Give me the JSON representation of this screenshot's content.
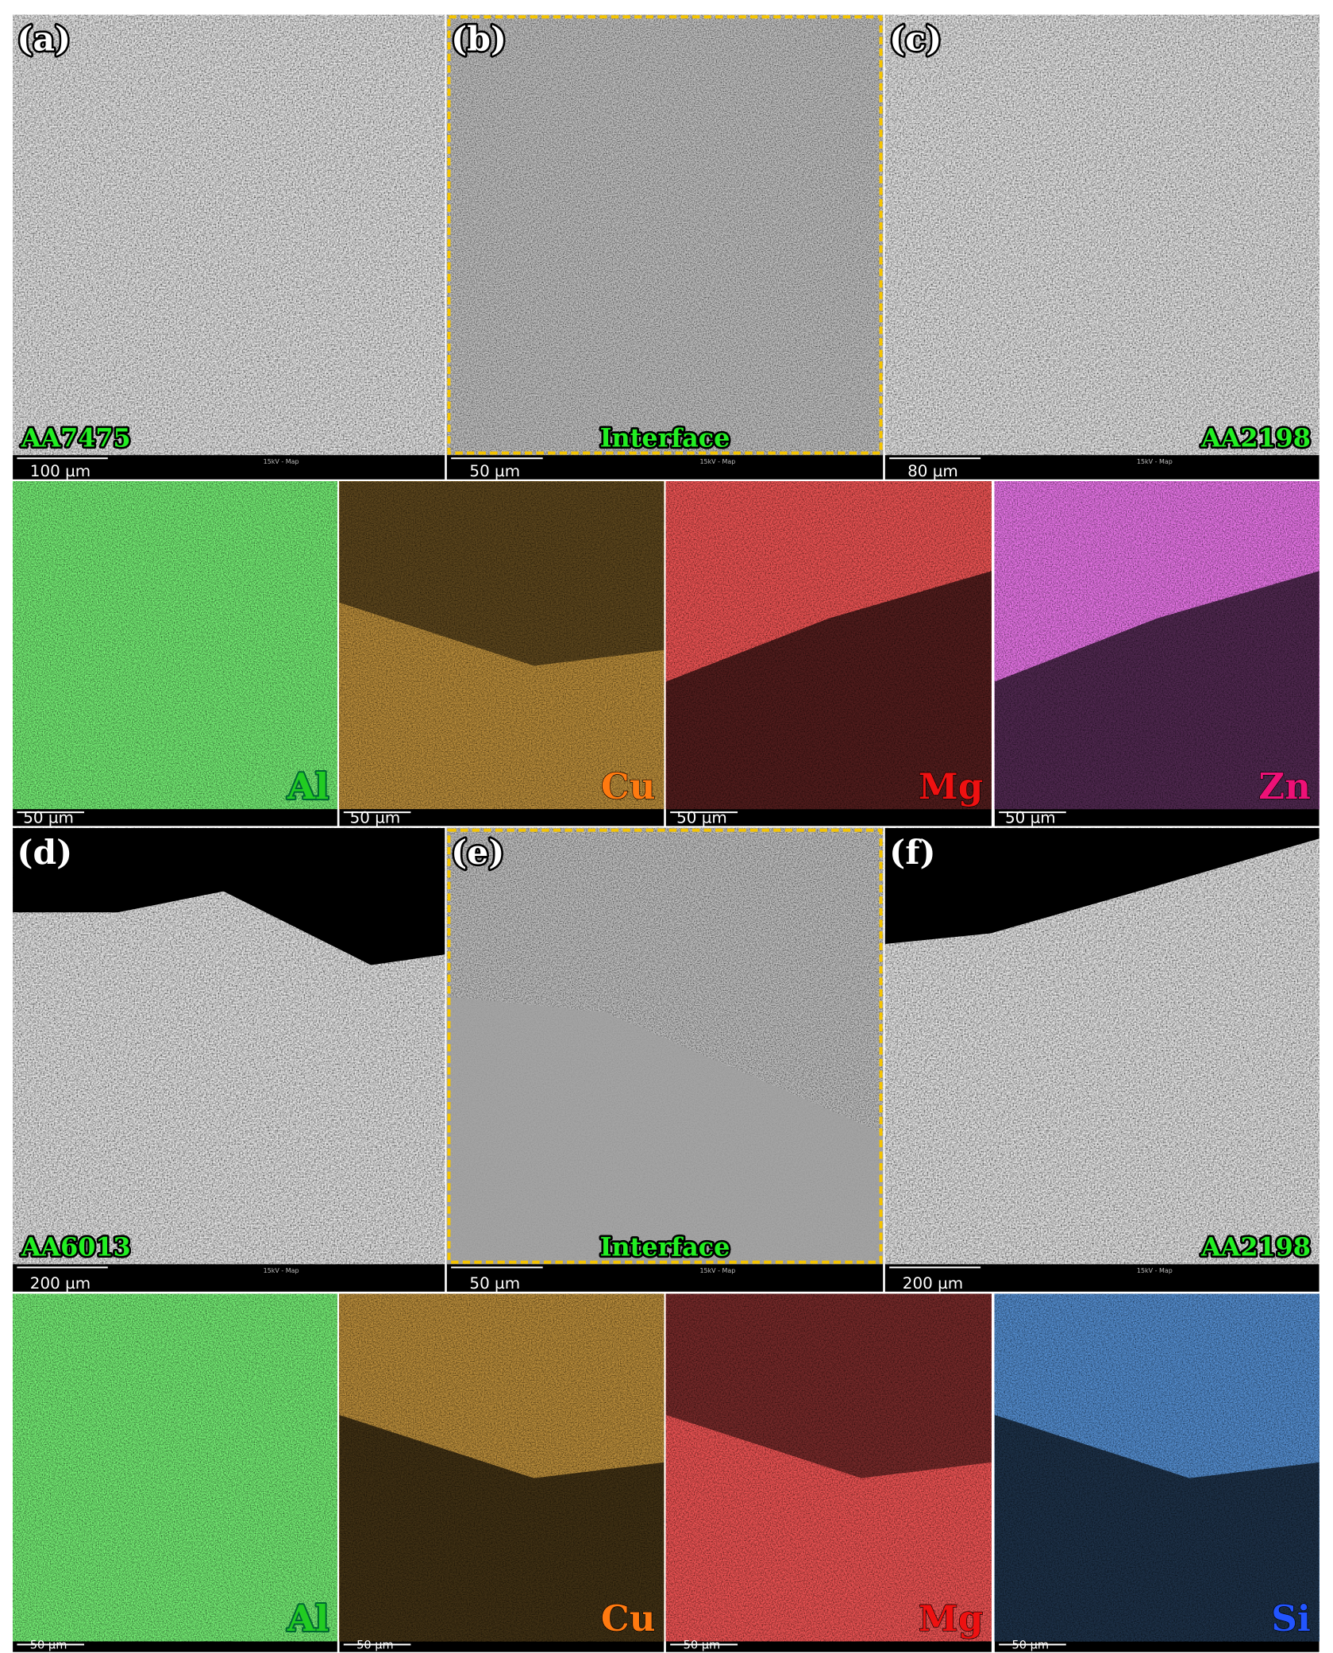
{
  "panels": [
    {
      "label": "(a)",
      "material": "AA7475",
      "scale_bar": "100 µm",
      "info": "15kV - Map"
    },
    {
      "label": "(b)",
      "material": "Interface",
      "scale_bar": "50 µm",
      "info": "15kV - Map"
    },
    {
      "label": "(c)",
      "material": "AA2198",
      "scale_bar": "80 µm",
      "info": "15kV - Map"
    },
    {
      "label": "(d)",
      "material": "AA6013",
      "scale_bar": "200 µm",
      "info": "15kV - Map"
    },
    {
      "label": "(e)",
      "material": "Interface",
      "scale_bar": "50 µm",
      "info": "15kV - Map"
    },
    {
      "label": "(f)",
      "material": "AA2198",
      "scale_bar": "200 µm",
      "info": "15kV - Map"
    }
  ],
  "maps_top": [
    {
      "element": "Al",
      "scale_bar": "50 µm"
    },
    {
      "element": "Cu",
      "scale_bar": "50 µm"
    },
    {
      "element": "Mg",
      "scale_bar": "50 µm"
    },
    {
      "element": "Zn",
      "scale_bar": "50 µm"
    }
  ],
  "maps_bottom": [
    {
      "element": "Al",
      "scale_bar": "50 µm"
    },
    {
      "element": "Cu",
      "scale_bar": "50 µm"
    },
    {
      "element": "Mg",
      "scale_bar": "50 µm"
    },
    {
      "element": "Si",
      "scale_bar": "50 µm"
    }
  ]
}
